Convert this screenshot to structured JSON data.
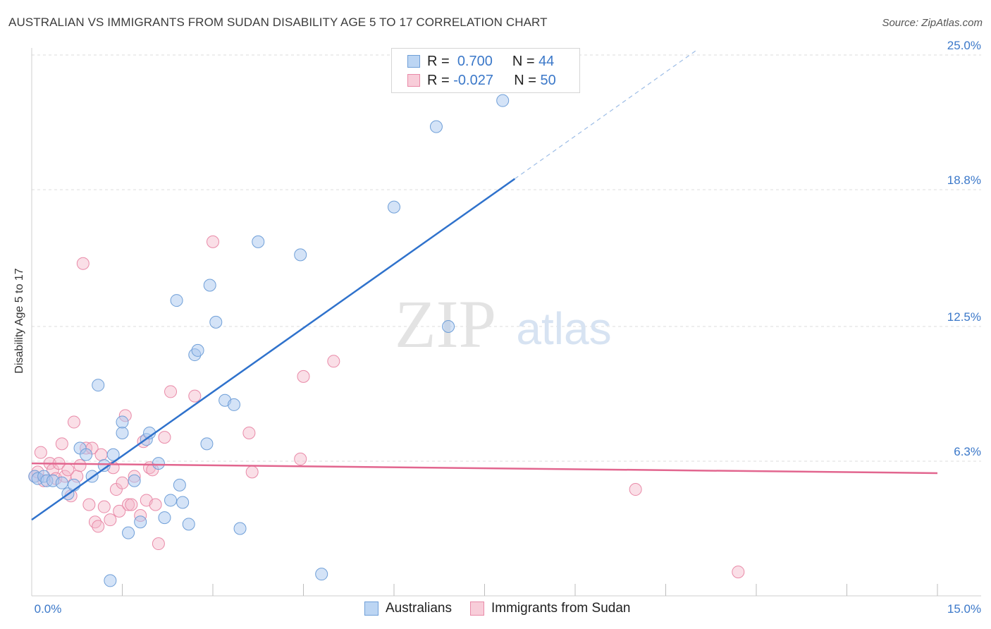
{
  "title": "AUSTRALIAN VS IMMIGRANTS FROM SUDAN DISABILITY AGE 5 TO 17 CORRELATION CHART",
  "source": "Source: ZipAtlas.com",
  "watermark": {
    "zip": "ZIP",
    "atlas": "atlas"
  },
  "legend": {
    "r_label": "R =",
    "n_label": "N =",
    "rows": [
      {
        "r": "0.700",
        "n": "44"
      },
      {
        "r": "-0.027",
        "n": "50"
      }
    ]
  },
  "bottom_legend": {
    "series1": "Australians",
    "series2": "Immigrants from Sudan"
  },
  "colors": {
    "blue_fill": "#a9c8ef",
    "blue_stroke": "#6f9fd8",
    "blue_line": "#2f72cc",
    "pink_fill": "#f4b8ca",
    "pink_stroke": "#e98aa8",
    "pink_line": "#e2668f",
    "tick_label": "#3b78c9"
  },
  "chart_data": {
    "type": "scatter",
    "title": "AUSTRALIAN VS IMMIGRANTS FROM SUDAN DISABILITY AGE 5 TO 17 CORRELATION CHART",
    "xlabel": "",
    "ylabel": "Disability Age 5 to 17",
    "xlim": [
      0,
      15
    ],
    "ylim": [
      0,
      26
    ],
    "x_tick_labels": [
      {
        "value": 0,
        "label": "0.0%"
      },
      {
        "value": 15,
        "label": "15.0%"
      }
    ],
    "y_tick_labels": [
      {
        "value": 6.3,
        "label": "6.3%"
      },
      {
        "value": 12.5,
        "label": "12.5%"
      },
      {
        "value": 18.8,
        "label": "18.8%"
      },
      {
        "value": 25.0,
        "label": "25.0%"
      }
    ],
    "x_minor_ticks": [
      1.5,
      3.0,
      4.5,
      6.0,
      7.5,
      9.0,
      10.5,
      12.0,
      13.5,
      15.0
    ],
    "series": [
      {
        "name": "Australians",
        "r": 0.7,
        "n": 44,
        "trend": {
          "x0": 0.0,
          "y0": 3.6,
          "x1": 8.0,
          "y1": 19.3,
          "dash_to_x": 11.0,
          "dash_to_y": 25.2
        },
        "points": [
          [
            0.05,
            5.6
          ],
          [
            0.1,
            5.5
          ],
          [
            0.2,
            5.6
          ],
          [
            0.25,
            5.4
          ],
          [
            0.35,
            5.4
          ],
          [
            0.5,
            5.3
          ],
          [
            0.6,
            4.8
          ],
          [
            0.7,
            5.2
          ],
          [
            0.8,
            6.9
          ],
          [
            0.9,
            6.6
          ],
          [
            1.0,
            5.6
          ],
          [
            1.1,
            9.8
          ],
          [
            1.2,
            6.1
          ],
          [
            1.3,
            0.8
          ],
          [
            1.35,
            6.6
          ],
          [
            1.5,
            7.6
          ],
          [
            1.5,
            8.1
          ],
          [
            1.6,
            3.0
          ],
          [
            1.7,
            5.4
          ],
          [
            1.8,
            3.5
          ],
          [
            1.9,
            7.3
          ],
          [
            1.95,
            7.6
          ],
          [
            2.1,
            6.2
          ],
          [
            2.2,
            3.7
          ],
          [
            2.3,
            4.5
          ],
          [
            2.4,
            13.7
          ],
          [
            2.45,
            5.2
          ],
          [
            2.5,
            4.4
          ],
          [
            2.6,
            3.4
          ],
          [
            2.7,
            11.2
          ],
          [
            2.75,
            11.4
          ],
          [
            2.9,
            7.1
          ],
          [
            2.95,
            14.4
          ],
          [
            3.05,
            12.7
          ],
          [
            3.2,
            9.1
          ],
          [
            3.35,
            8.9
          ],
          [
            3.45,
            3.2
          ],
          [
            3.75,
            16.4
          ],
          [
            4.45,
            15.8
          ],
          [
            4.8,
            1.1
          ],
          [
            6.0,
            18.0
          ],
          [
            6.7,
            21.7
          ],
          [
            6.9,
            12.5
          ],
          [
            7.8,
            22.9
          ]
        ]
      },
      {
        "name": "Immigrants from Sudan",
        "r": -0.027,
        "n": 50,
        "trend": {
          "x0": 0.0,
          "y0": 6.2,
          "x1": 15.0,
          "y1": 5.75
        },
        "points": [
          [
            0.05,
            5.6
          ],
          [
            0.1,
            5.8
          ],
          [
            0.15,
            6.7
          ],
          [
            0.2,
            5.4
          ],
          [
            0.3,
            6.2
          ],
          [
            0.35,
            5.9
          ],
          [
            0.4,
            5.5
          ],
          [
            0.45,
            6.2
          ],
          [
            0.5,
            7.1
          ],
          [
            0.55,
            5.6
          ],
          [
            0.6,
            5.9
          ],
          [
            0.65,
            4.7
          ],
          [
            0.7,
            8.1
          ],
          [
            0.75,
            5.6
          ],
          [
            0.8,
            6.1
          ],
          [
            0.85,
            15.4
          ],
          [
            0.9,
            6.9
          ],
          [
            0.95,
            4.3
          ],
          [
            1.0,
            6.9
          ],
          [
            1.05,
            3.5
          ],
          [
            1.1,
            3.3
          ],
          [
            1.15,
            6.6
          ],
          [
            1.2,
            4.2
          ],
          [
            1.3,
            3.6
          ],
          [
            1.35,
            6.0
          ],
          [
            1.4,
            5.0
          ],
          [
            1.45,
            4.0
          ],
          [
            1.5,
            5.3
          ],
          [
            1.55,
            8.4
          ],
          [
            1.6,
            4.3
          ],
          [
            1.65,
            4.3
          ],
          [
            1.7,
            5.6
          ],
          [
            1.8,
            3.8
          ],
          [
            1.85,
            7.2
          ],
          [
            1.9,
            4.5
          ],
          [
            1.95,
            6.0
          ],
          [
            2.0,
            5.9
          ],
          [
            2.05,
            4.3
          ],
          [
            2.1,
            2.5
          ],
          [
            2.2,
            7.4
          ],
          [
            2.3,
            9.5
          ],
          [
            2.7,
            9.3
          ],
          [
            3.0,
            16.4
          ],
          [
            3.6,
            7.6
          ],
          [
            3.65,
            5.8
          ],
          [
            4.45,
            6.4
          ],
          [
            4.5,
            10.2
          ],
          [
            5.0,
            10.9
          ],
          [
            10.0,
            5.0
          ],
          [
            11.7,
            1.2
          ]
        ]
      }
    ]
  }
}
